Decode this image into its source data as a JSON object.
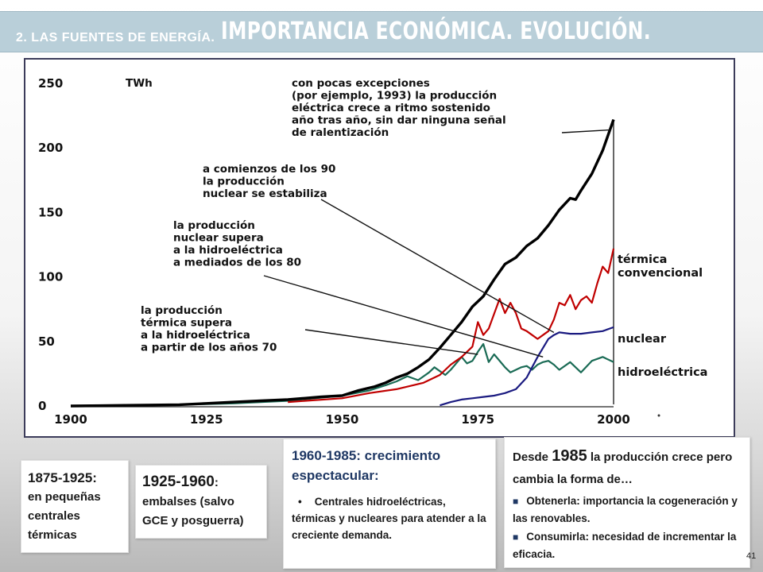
{
  "header": {
    "small": "2. LAS FUENTES DE ENERGÍA.",
    "big": "IMPORTANCIA ECONÓMICA. EVOLUCIÓN."
  },
  "chart_data": {
    "type": "line",
    "ylabel": "TWh",
    "ylim": [
      0,
      250
    ],
    "xlim": [
      1900,
      2000
    ],
    "x_ticks": [
      "1900",
      "1925",
      "1950",
      "1975",
      "2000"
    ],
    "y_ticks": [
      "0",
      "50",
      "100",
      "150",
      "200",
      "250"
    ],
    "series": [
      {
        "name": "",
        "color": "#000000",
        "x": [
          1900,
          1910,
          1920,
          1925,
          1930,
          1935,
          1940,
          1943,
          1946,
          1950,
          1953,
          1956,
          1958,
          1960,
          1962,
          1964,
          1966,
          1968,
          1970,
          1972,
          1974,
          1976,
          1978,
          1980,
          1982,
          1984,
          1986,
          1988,
          1990,
          1992,
          1993,
          1994,
          1996,
          1998,
          2000
        ],
        "y": [
          0,
          0.5,
          1,
          2,
          3,
          4,
          5,
          6,
          7,
          8,
          12,
          15,
          18,
          22,
          25,
          30,
          36,
          45,
          55,
          65,
          77,
          85,
          98,
          110,
          115,
          124,
          130,
          140,
          152,
          161,
          160,
          167,
          180,
          198,
          222
        ]
      },
      {
        "name": "térmica convencional",
        "color": "#c00000",
        "x": [
          1940,
          1950,
          1955,
          1960,
          1965,
          1968,
          1970,
          1972,
          1974,
          1975,
          1976,
          1977,
          1979,
          1980,
          1981,
          1982,
          1983,
          1984,
          1985,
          1986,
          1987,
          1988,
          1989,
          1990,
          1991,
          1992,
          1993,
          1994,
          1995,
          1996,
          1997,
          1998,
          1999,
          2000
        ],
        "y": [
          3,
          6,
          10,
          13,
          18,
          24,
          32,
          38,
          46,
          65,
          55,
          60,
          83,
          72,
          80,
          72,
          60,
          58,
          55,
          52,
          55,
          58,
          67,
          80,
          78,
          86,
          75,
          82,
          85,
          80,
          95,
          108,
          103,
          122
        ]
      },
      {
        "name": "nuclear",
        "color": "#1a1a80",
        "x": [
          1968,
          1970,
          1972,
          1974,
          1976,
          1978,
          1980,
          1982,
          1984,
          1985,
          1986,
          1987,
          1988,
          1989,
          1990,
          1992,
          1994,
          1996,
          1998,
          2000
        ],
        "y": [
          0.5,
          3,
          5,
          6,
          7,
          8,
          10,
          13,
          22,
          30,
          38,
          45,
          52,
          55,
          57,
          56,
          56,
          57,
          58,
          61
        ]
      },
      {
        "name": "hidroeléctrica",
        "color": "#1a6b55",
        "x": [
          1900,
          1920,
          1930,
          1940,
          1945,
          1950,
          1955,
          1958,
          1960,
          1962,
          1964,
          1966,
          1967,
          1969,
          1970,
          1972,
          1973,
          1974,
          1975,
          1976,
          1977,
          1978,
          1980,
          1981,
          1982,
          1983,
          1984,
          1985,
          1986,
          1987,
          1988,
          1989,
          1990,
          1992,
          1994,
          1996,
          1998,
          2000
        ],
        "y": [
          0,
          1,
          2,
          4,
          6,
          8,
          12,
          16,
          19,
          23,
          20,
          26,
          30,
          24,
          28,
          38,
          33,
          35,
          42,
          48,
          34,
          40,
          30,
          26,
          28,
          30,
          31,
          28,
          32,
          34,
          35,
          32,
          28,
          34,
          26,
          35,
          38,
          34
        ]
      }
    ],
    "series_labels": [
      "térmica",
      "convencional",
      "nuclear",
      "hidroeléctrica"
    ],
    "annotations": [
      [
        "con pocas excepciones",
        "(por ejemplo, 1993) la producción",
        "eléctrica crece a ritmo sostenido",
        "año tras año, sin dar ninguna señal",
        "de ralentización"
      ],
      [
        "a comienzos de los 90",
        "la producción",
        "nuclear se estabiliza"
      ],
      [
        "la producción",
        "nuclear supera",
        "a la hidroeléctrica",
        "a mediados de los 80"
      ],
      [
        "la producción",
        "térmica supera",
        "a la hidroeléctrica",
        "a partir de los años 70"
      ]
    ]
  },
  "boxes": {
    "b1": {
      "heading": "1875-1925:",
      "text": "en pequeñas centrales térmicas"
    },
    "b2": {
      "heading": "1925-1960",
      "colon": ":",
      "text": "embalses (salvo GCE y posguerra)"
    },
    "b3": {
      "heading": "1960-1985: crecimiento espectacular:",
      "bullet_mark": "•",
      "bullet": "Centrales hidroeléctricas, térmicas y nucleares para atender a la creciente demanda."
    },
    "b4": {
      "pre": "Desde",
      "year": "1985",
      "post": "la producción crece pero cambia la forma de…",
      "bullet1": "Obtenerla: importancia la cogeneración y las renovables.",
      "bullet2": "Consumirla: necesidad de incrementar la eficacia."
    }
  },
  "page_number": "41"
}
